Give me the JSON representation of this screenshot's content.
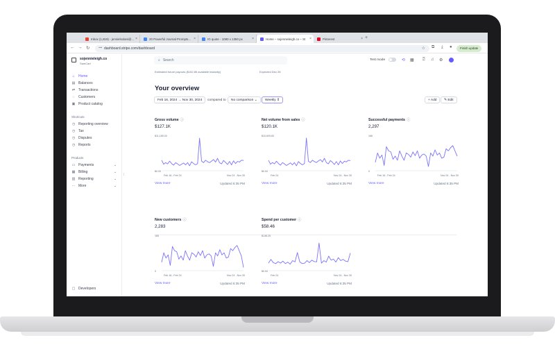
{
  "browser": {
    "tabs": [
      {
        "title": "Inbox (1,819) - jennielsolani@...",
        "color": "#ea4335"
      },
      {
        "title": "20 Powerful Journal Prompts...",
        "color": "#4285f4"
      },
      {
        "title": "IG quote - 1080 x 1350 px",
        "color": "#4285f4"
      },
      {
        "title": "Home – sojennieleigh.co – St",
        "color": "#635bff"
      },
      {
        "title": "Pinterest",
        "color": "#e60023"
      }
    ],
    "new_tab": "+",
    "url": "dashboard.stripe.com/dashboard",
    "finish_update": "Finish update"
  },
  "sidebar": {
    "account_name": "sojennieleigh.co",
    "account_sub": "SamCart",
    "items": [
      {
        "label": "Home",
        "icon": "home-icon",
        "glyph": "⌂"
      },
      {
        "label": "Balances",
        "icon": "balances-icon",
        "glyph": "▤"
      },
      {
        "label": "Transactions",
        "icon": "transactions-icon",
        "glyph": "⇄"
      },
      {
        "label": "Customers",
        "icon": "customers-icon",
        "glyph": "◌"
      },
      {
        "label": "Product catalog",
        "icon": "product-catalog-icon",
        "glyph": "▣"
      }
    ],
    "shortcuts_label": "Shortcuts",
    "shortcuts": [
      {
        "label": "Reporting overview",
        "icon": "clock-icon",
        "glyph": "◷"
      },
      {
        "label": "Tax",
        "icon": "clock-icon",
        "glyph": "◷"
      },
      {
        "label": "Disputes",
        "icon": "clock-icon",
        "glyph": "◷"
      },
      {
        "label": "Reports",
        "icon": "clock-icon",
        "glyph": "◷"
      }
    ],
    "products_label": "Products",
    "products": [
      {
        "label": "Payments",
        "icon": "payments-icon",
        "glyph": "▭"
      },
      {
        "label": "Billing",
        "icon": "billing-icon",
        "glyph": "▦"
      },
      {
        "label": "Reporting",
        "icon": "reporting-icon",
        "glyph": "▥"
      },
      {
        "label": "More",
        "icon": "more-icon",
        "glyph": "···"
      }
    ],
    "developers": "Developers"
  },
  "header": {
    "search_placeholder": "Search",
    "test_mode": "Test mode"
  },
  "notes": {
    "payouts": "Estimated future payouts ($152.85 available instantly)",
    "expected": "Expected Dec 28"
  },
  "overview": {
    "title": "Your overview",
    "date_range": "Feb 16, 2024 → Nov 30, 2024",
    "compared_to": "compared to",
    "comparison": "No comparison ⌄",
    "interval": "Weekly ⇕",
    "add": "+ Add",
    "edit": "✎ Edit"
  },
  "cards": [
    {
      "title": "Gross volume",
      "value": "$127.1K",
      "max": "$11,189.00",
      "min": "$0.00",
      "x_start": "Feb 16 - Feb 24",
      "x_end": "Nov 24 - Nov 30",
      "view_more": "View more",
      "updated": "Updated 6:35 PM"
    },
    {
      "title": "Net volume from sales",
      "value": "$120.1K",
      "max": "$10,609.83",
      "min": "$0.00",
      "x_start": "Feb 24",
      "x_end": "Nov 24 - Nov 30",
      "view_more": "View more",
      "updated": "Updated 6:35 PM"
    },
    {
      "title": "Successful payments",
      "value": "2,297",
      "max": "166",
      "min": "0",
      "x_start": "Feb 16 - Feb 24",
      "x_end": "Nov 24 - Nov 30",
      "view_more": "View more",
      "updated": "Updated 6:35 PM"
    },
    {
      "title": "New customers",
      "value": "2,283",
      "max": "165",
      "min": "0",
      "x_start": "Feb 16 - Feb 24",
      "x_end": "Nov 24 - Nov 30",
      "view_more": "View more",
      "updated": "Updated 6:35 PM"
    },
    {
      "title": "Spend per customer",
      "value": "$58.46",
      "max": "$138.25",
      "min": "$0.00",
      "x_start": "Feb 24",
      "x_end": "Nov 24 - Nov 30",
      "view_more": "View more",
      "updated": "Updated 6:35 PM"
    }
  ],
  "chart_data": [
    {
      "type": "line",
      "title": "Gross volume",
      "ylim": [
        0,
        11189
      ],
      "values": [
        3400,
        2100,
        2600,
        2200,
        3100,
        2300,
        1800,
        2600,
        2200,
        1700,
        2100,
        2500,
        1900,
        2600,
        1600,
        2900,
        2300,
        1900,
        2300,
        10500,
        3100,
        2600,
        3400,
        2900,
        2600,
        3100,
        3600,
        2800,
        4000,
        2600,
        2200,
        3300,
        2700,
        2000,
        3000,
        1900,
        3200,
        2300,
        3000,
        2800,
        3400,
        3300
      ]
    },
    {
      "type": "line",
      "title": "Net volume from sales",
      "ylim": [
        0,
        10609.83
      ],
      "values": [
        3200,
        2000,
        2500,
        2100,
        2900,
        2200,
        1700,
        2500,
        2100,
        1600,
        2000,
        2400,
        1800,
        2500,
        1500,
        2800,
        2200,
        1800,
        2200,
        10000,
        2900,
        2500,
        3200,
        2800,
        2500,
        3000,
        3400,
        2700,
        3800,
        2500,
        2100,
        3100,
        2600,
        1900,
        2800,
        1800,
        3000,
        2200,
        2900,
        2700,
        3200,
        3100
      ]
    },
    {
      "type": "line",
      "title": "Successful payments",
      "ylim": [
        0,
        166
      ],
      "values": [
        40,
        85,
        60,
        75,
        25,
        115,
        95,
        90,
        55,
        70,
        50,
        95,
        70,
        50,
        85,
        78,
        65,
        90,
        72,
        95,
        60,
        75,
        80,
        70,
        20,
        85,
        70,
        100,
        75,
        85,
        60,
        65,
        105,
        95,
        110,
        120,
        95,
        70
      ]
    },
    {
      "type": "line",
      "title": "New customers",
      "ylim": [
        0,
        165
      ],
      "values": [
        40,
        85,
        60,
        75,
        25,
        115,
        95,
        90,
        55,
        70,
        50,
        95,
        70,
        50,
        85,
        78,
        65,
        90,
        72,
        95,
        60,
        75,
        80,
        70,
        20,
        85,
        70,
        100,
        75,
        85,
        60,
        65,
        105,
        95,
        110,
        120,
        95,
        70,
        15
      ]
    },
    {
      "type": "line",
      "title": "Spend per customer",
      "ylim": [
        0,
        138.25
      ],
      "values": [
        30,
        45,
        32,
        28,
        36,
        30,
        38,
        28,
        34,
        26,
        40,
        35,
        72,
        35,
        28,
        30,
        40,
        32,
        42,
        36,
        35,
        110,
        30,
        40,
        34,
        58,
        42,
        46,
        34,
        52,
        40,
        45,
        38,
        36,
        70
      ]
    }
  ]
}
